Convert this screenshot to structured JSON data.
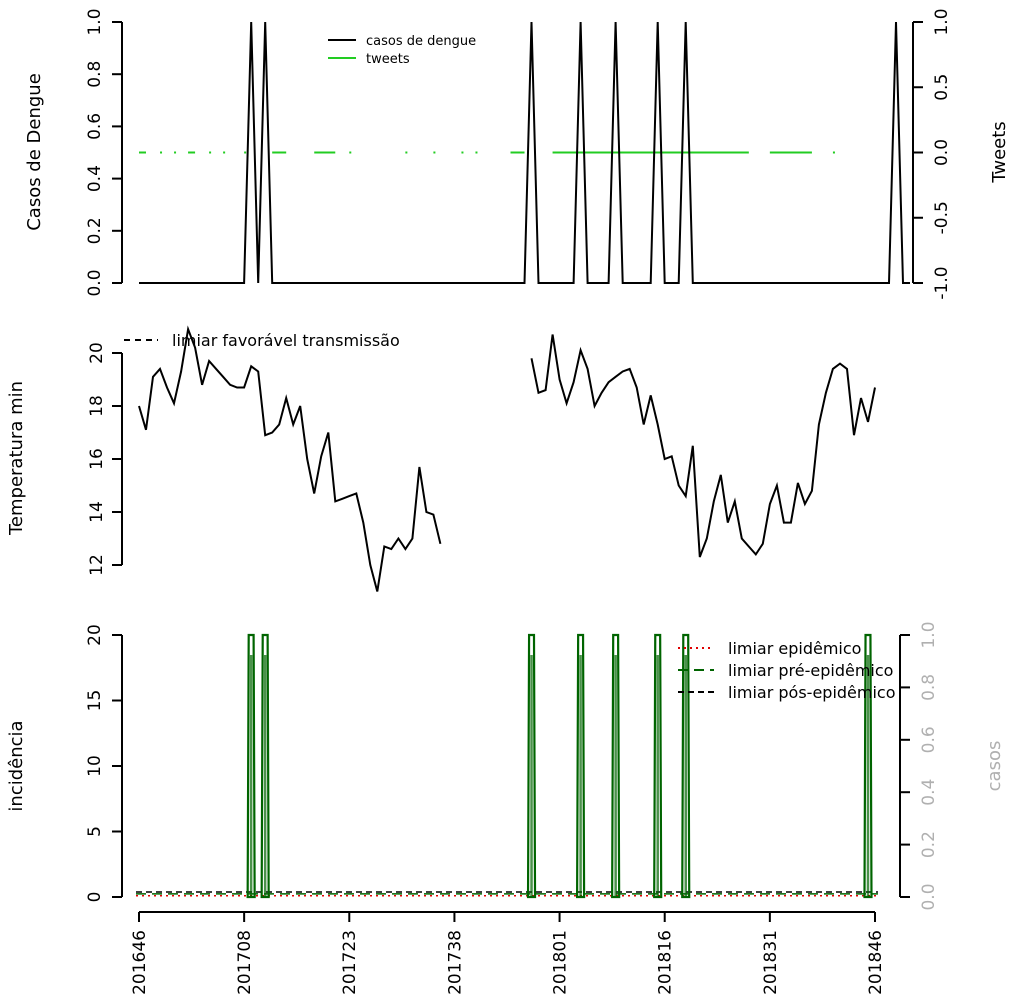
{
  "chart_data": [
    {
      "type": "line",
      "panel": "top",
      "ylabel": "Casos de Dengue",
      "ylabel_right": "Tweets",
      "ylim": [
        0,
        1
      ],
      "ylim_right": [
        -1,
        1
      ],
      "yticks": [
        "0.0",
        "0.2",
        "0.4",
        "0.6",
        "0.8",
        "1.0"
      ],
      "yticks_right": [
        "-1.0",
        "-0.5",
        "0.0",
        "0.5",
        "1.0"
      ],
      "legend": [
        "casos de dengue",
        "tweets"
      ],
      "legend_position": "top-center",
      "series": [
        {
          "name": "casos de dengue",
          "color": "#000000",
          "values": [
            0,
            0,
            0,
            0,
            0,
            0,
            0,
            0,
            0,
            0,
            0,
            0,
            0,
            0,
            0,
            0,
            1,
            0,
            1,
            0,
            0,
            0,
            0,
            0,
            0,
            0,
            0,
            0,
            0,
            0,
            0,
            0,
            0,
            0,
            0,
            0,
            0,
            0,
            0,
            0,
            0,
            0,
            0,
            0,
            0,
            0,
            0,
            0,
            0,
            0,
            0,
            0,
            0,
            0,
            0,
            0,
            1,
            0,
            0,
            0,
            0,
            0,
            0,
            1,
            0,
            0,
            0,
            0,
            1,
            0,
            0,
            0,
            0,
            0,
            1,
            0,
            0,
            0,
            1,
            0,
            0,
            0,
            0,
            0,
            0,
            0,
            0,
            0,
            0,
            0,
            0,
            0,
            0,
            0,
            0,
            0,
            0,
            0,
            0,
            0,
            0,
            0,
            0,
            0,
            0,
            0,
            0,
            0,
            1,
            0,
            0
          ]
        },
        {
          "name": "tweets",
          "color": "#22cc22",
          "segments": [
            [
              0,
              1
            ],
            [
              3,
              3
            ],
            [
              5,
              5
            ],
            [
              7,
              8
            ],
            [
              10,
              10
            ],
            [
              12,
              12
            ],
            [
              15,
              15
            ],
            [
              19,
              21
            ],
            [
              25,
              28
            ],
            [
              30,
              30
            ],
            [
              38,
              38
            ],
            [
              42,
              42
            ],
            [
              46,
              46
            ],
            [
              48,
              48
            ],
            [
              53,
              55
            ],
            [
              59,
              87
            ],
            [
              90,
              96
            ],
            [
              99,
              99
            ]
          ],
          "value": 0
        }
      ]
    },
    {
      "type": "line",
      "panel": "middle",
      "ylabel": "Temperatura min",
      "ylim": [
        11.5,
        20.5
      ],
      "yticks": [
        "12",
        "14",
        "16",
        "18",
        "20"
      ],
      "legend": [
        "limiar favorável transmissão"
      ],
      "legend_position": "top-left",
      "series": [
        {
          "color": "#000000",
          "values": [
            18.0,
            17.1,
            19.1,
            19.4,
            18.7,
            18.1,
            19.3,
            20.9,
            20.2,
            18.8,
            19.7,
            19.4,
            19.1,
            18.8,
            18.7,
            18.7,
            19.5,
            19.3,
            16.9,
            17.0,
            17.3,
            18.3,
            17.3,
            18.0,
            16.0,
            14.7,
            16.1,
            17.0,
            14.4,
            14.5,
            14.6,
            14.7,
            13.6,
            12.0,
            11.0,
            12.7,
            12.6,
            13.0,
            12.6,
            13.0,
            15.7,
            14.0,
            13.9,
            12.8,
            null,
            null,
            null,
            null,
            null,
            null,
            null,
            null,
            null,
            null,
            null,
            null,
            19.8,
            18.5,
            18.6,
            20.7,
            19.0,
            18.1,
            18.9,
            20.1,
            19.4,
            18.0,
            18.5,
            18.9,
            19.1,
            19.3,
            19.4,
            18.7,
            17.3,
            18.4,
            17.3,
            16.0,
            16.1,
            15.0,
            14.6,
            16.5,
            12.3,
            13.0,
            14.4,
            15.4,
            13.6,
            14.4,
            13.0,
            12.7,
            12.4,
            12.8,
            14.3,
            15.0,
            13.6,
            13.6,
            15.1,
            14.3,
            14.8,
            17.3,
            18.5,
            19.4,
            19.6,
            19.4,
            16.9,
            18.3,
            17.4,
            18.7
          ]
        }
      ]
    },
    {
      "type": "line",
      "panel": "bottom",
      "ylabel": "incidência",
      "ylabel_right": "casos",
      "ylim": [
        0,
        20
      ],
      "ylim_right": [
        0,
        1
      ],
      "yticks": [
        "0",
        "5",
        "10",
        "15",
        "20"
      ],
      "yticks_right": [
        "0.0",
        "0.2",
        "0.4",
        "0.6",
        "0.8",
        "1.0"
      ],
      "legend": [
        "limiar epidêmico",
        "limiar pré-epidêmico",
        "limiar pós-epidêmico"
      ],
      "legend_position": "top-right",
      "legend_colors": [
        "#e00000",
        "#006400",
        "#000000"
      ],
      "series": [
        {
          "color": "#006400",
          "spikes": [
            16,
            18,
            56,
            63,
            68,
            74,
            78,
            104
          ],
          "peak": 20
        }
      ],
      "thresholds": [
        0.1,
        0.15,
        0.2
      ]
    }
  ],
  "xaxis": {
    "ticks": [
      "201646",
      "201708",
      "201723",
      "201738",
      "201801",
      "201816",
      "201831",
      "201846"
    ],
    "tick_index": [
      0,
      15,
      30,
      45,
      60,
      75,
      90,
      105
    ]
  }
}
